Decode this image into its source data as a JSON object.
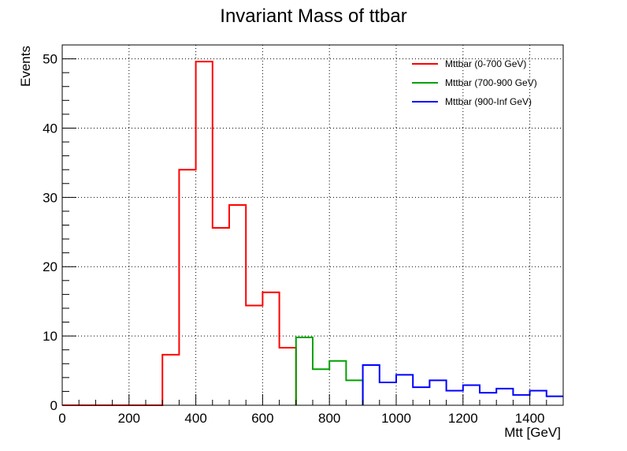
{
  "chart_data": {
    "type": "bar",
    "title": "Invariant Mass of ttbar",
    "xlabel": "Mtt [GeV]",
    "ylabel": "Events",
    "xlim": [
      0,
      1500
    ],
    "ylim": [
      0,
      52
    ],
    "grid": true,
    "legend_position": "top-right",
    "x_ticks": [
      "0",
      "200",
      "400",
      "600",
      "800",
      "1000",
      "1200",
      "1400"
    ],
    "y_ticks": [
      "0",
      "10",
      "20",
      "30",
      "40",
      "50"
    ],
    "bin_width": 50,
    "series": [
      {
        "name": "Mttbar (0-700 GeV)",
        "color": "#ff0000",
        "bins": [
          {
            "x0": 0,
            "value": 0
          },
          {
            "x0": 50,
            "value": 0
          },
          {
            "x0": 100,
            "value": 0
          },
          {
            "x0": 150,
            "value": 0
          },
          {
            "x0": 200,
            "value": 0
          },
          {
            "x0": 250,
            "value": 0
          },
          {
            "x0": 300,
            "value": 7.3
          },
          {
            "x0": 350,
            "value": 34.0
          },
          {
            "x0": 400,
            "value": 49.6
          },
          {
            "x0": 450,
            "value": 25.6
          },
          {
            "x0": 500,
            "value": 28.9
          },
          {
            "x0": 550,
            "value": 14.4
          },
          {
            "x0": 600,
            "value": 16.3
          },
          {
            "x0": 650,
            "value": 8.3
          }
        ]
      },
      {
        "name": "Mttbar (700-900 GeV)",
        "color": "#00a000",
        "bins": [
          {
            "x0": 700,
            "value": 9.8
          },
          {
            "x0": 750,
            "value": 5.2
          },
          {
            "x0": 800,
            "value": 6.4
          },
          {
            "x0": 850,
            "value": 3.6
          }
        ]
      },
      {
        "name": "Mttbar (900-Inf GeV)",
        "color": "#0000ff",
        "bins": [
          {
            "x0": 900,
            "value": 5.8
          },
          {
            "x0": 950,
            "value": 3.3
          },
          {
            "x0": 1000,
            "value": 4.4
          },
          {
            "x0": 1050,
            "value": 2.6
          },
          {
            "x0": 1100,
            "value": 3.6
          },
          {
            "x0": 1150,
            "value": 2.1
          },
          {
            "x0": 1200,
            "value": 2.9
          },
          {
            "x0": 1250,
            "value": 1.8
          },
          {
            "x0": 1300,
            "value": 2.4
          },
          {
            "x0": 1350,
            "value": 1.5
          },
          {
            "x0": 1400,
            "value": 2.1
          },
          {
            "x0": 1450,
            "value": 1.3
          }
        ]
      }
    ]
  }
}
